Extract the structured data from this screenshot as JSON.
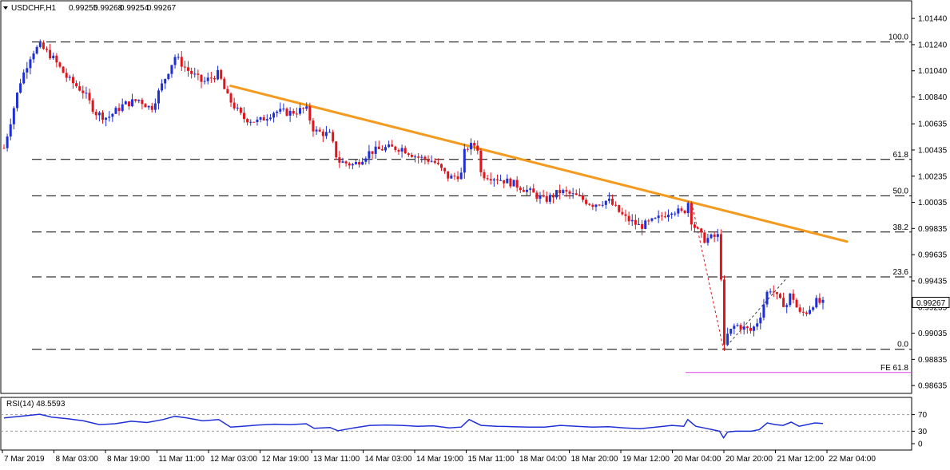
{
  "chart_data": {
    "type": "candlestick",
    "symbol_line": {
      "symbol": "USDCHF,H1",
      "open": "0.99255",
      "high": "0.99268",
      "low": "0.99254",
      "close": "0.99267"
    },
    "price_axis": {
      "range": [
        0.98575,
        1.01575
      ],
      "ticks": [
        "1.01440",
        "1.01240",
        "1.01040",
        "1.00840",
        "1.00635",
        "1.00435",
        "1.00235",
        "1.00035",
        "0.99835",
        "0.99635",
        "0.99435",
        "0.99235",
        "0.99035",
        "0.98835",
        "0.98635"
      ],
      "current_price_label": "0.99267",
      "current_price": 0.99267
    },
    "time_axis": {
      "labels": [
        "7 Mar 2019",
        "8 Mar 03:00",
        "8 Mar 19:00",
        "11 Mar 11:00",
        "12 Mar 03:00",
        "12 Mar 19:00",
        "13 Mar 11:00",
        "14 Mar 03:00",
        "14 Mar 19:00",
        "15 Mar 11:00",
        "18 Mar 04:00",
        "18 Mar 20:00",
        "19 Mar 12:00",
        "20 Mar 04:00",
        "20 Mar 20:00",
        "21 Mar 12:00",
        "22 Mar 04:00"
      ]
    },
    "fibonacci_levels": [
      {
        "label": "100.0",
        "price": 1.0126
      },
      {
        "label": "61.8",
        "price": 1.00363
      },
      {
        "label": "50.0",
        "price": 1.00085
      },
      {
        "label": "38.2",
        "price": 0.99808
      },
      {
        "label": "23.6",
        "price": 0.99465
      },
      {
        "label": "0.0",
        "price": 0.98912
      }
    ],
    "fibonacci_extension": {
      "label": "FE 61.8",
      "price": 0.98735
    },
    "trendline": {
      "start": {
        "bar": 0.285,
        "price": 1.00925
      },
      "end": {
        "bar": 1.0,
        "price": 0.99735
      }
    },
    "price_path": [
      [
        0.0,
        1.0045
      ],
      [
        0.02,
        1.0095
      ],
      [
        0.035,
        1.0118
      ],
      [
        0.045,
        1.0123
      ],
      [
        0.06,
        1.0115
      ],
      [
        0.08,
        1.0098
      ],
      [
        0.1,
        1.0088
      ],
      [
        0.115,
        1.0072
      ],
      [
        0.13,
        1.0068
      ],
      [
        0.15,
        1.0078
      ],
      [
        0.17,
        1.0082
      ],
      [
        0.185,
        1.0075
      ],
      [
        0.2,
        1.0095
      ],
      [
        0.215,
        1.0115
      ],
      [
        0.23,
        1.0105
      ],
      [
        0.25,
        1.0095
      ],
      [
        0.27,
        1.0102
      ],
      [
        0.28,
        1.0085
      ],
      [
        0.3,
        1.0068
      ],
      [
        0.32,
        1.0065
      ],
      [
        0.34,
        1.0073
      ],
      [
        0.36,
        1.0072
      ],
      [
        0.38,
        1.0075
      ],
      [
        0.39,
        1.0058
      ],
      [
        0.41,
        1.0055
      ],
      [
        0.42,
        1.0035
      ],
      [
        0.44,
        1.0032
      ],
      [
        0.46,
        1.0042
      ],
      [
        0.48,
        1.0045
      ],
      [
        0.5,
        1.0045
      ],
      [
        0.52,
        1.0038
      ],
      [
        0.54,
        1.0035
      ],
      [
        0.56,
        1.0022
      ],
      [
        0.575,
        1.0025
      ],
      [
        0.58,
        1.0045
      ],
      [
        0.595,
        1.0048
      ],
      [
        0.6,
        1.0025
      ],
      [
        0.62,
        1.0022
      ],
      [
        0.64,
        1.0018
      ],
      [
        0.66,
        1.0012
      ],
      [
        0.68,
        1.0005
      ],
      [
        0.7,
        1.0012
      ],
      [
        0.72,
        1.0008
      ],
      [
        0.74,
        1.0002
      ],
      [
        0.76,
        1.0005
      ],
      [
        0.78,
        0.9992
      ],
      [
        0.8,
        0.9985
      ],
      [
        0.82,
        0.999
      ],
      [
        0.84,
        0.9998
      ],
      [
        0.855,
        0.9995
      ],
      [
        0.86,
        1.0005
      ],
      [
        0.865,
        0.9988
      ],
      [
        0.88,
        0.9975
      ],
      [
        0.9,
        0.9978
      ],
      [
        0.905,
        0.989
      ],
      [
        0.91,
        0.9902
      ],
      [
        0.92,
        0.991
      ],
      [
        0.94,
        0.9905
      ],
      [
        0.95,
        0.9915
      ],
      [
        0.96,
        0.9935
      ],
      [
        0.965,
        0.9938
      ],
      [
        0.975,
        0.9928
      ],
      [
        0.985,
        0.9925
      ],
      [
        0.99,
        0.9935
      ],
      [
        1.0,
        0.9918
      ],
      [
        1.01,
        0.992
      ],
      [
        1.02,
        0.9928
      ],
      [
        1.03,
        0.9926
      ]
    ],
    "rsi": {
      "label": "RSI(14) 48.5593",
      "range": [
        0,
        100
      ],
      "levels": [
        {
          "label": "70",
          "value": 70
        },
        {
          "label": "30",
          "value": 30
        }
      ],
      "extra_tick": {
        "label": "0",
        "value": 0
      },
      "path": [
        [
          0.0,
          62
        ],
        [
          0.02,
          66
        ],
        [
          0.045,
          71
        ],
        [
          0.06,
          64
        ],
        [
          0.08,
          60
        ],
        [
          0.1,
          55
        ],
        [
          0.12,
          46
        ],
        [
          0.14,
          48
        ],
        [
          0.16,
          54
        ],
        [
          0.18,
          51
        ],
        [
          0.2,
          58
        ],
        [
          0.215,
          66
        ],
        [
          0.23,
          62
        ],
        [
          0.25,
          55
        ],
        [
          0.27,
          58
        ],
        [
          0.285,
          40
        ],
        [
          0.3,
          42
        ],
        [
          0.32,
          45
        ],
        [
          0.34,
          47
        ],
        [
          0.36,
          46
        ],
        [
          0.38,
          48
        ],
        [
          0.39,
          37
        ],
        [
          0.41,
          39
        ],
        [
          0.42,
          31
        ],
        [
          0.44,
          38
        ],
        [
          0.46,
          44
        ],
        [
          0.48,
          45
        ],
        [
          0.5,
          44
        ],
        [
          0.52,
          42
        ],
        [
          0.54,
          43
        ],
        [
          0.56,
          38
        ],
        [
          0.575,
          40
        ],
        [
          0.585,
          58
        ],
        [
          0.6,
          44
        ],
        [
          0.62,
          42
        ],
        [
          0.64,
          41
        ],
        [
          0.66,
          40
        ],
        [
          0.68,
          40
        ],
        [
          0.7,
          44
        ],
        [
          0.72,
          42
        ],
        [
          0.74,
          40
        ],
        [
          0.76,
          41
        ],
        [
          0.78,
          38
        ],
        [
          0.8,
          36
        ],
        [
          0.82,
          40
        ],
        [
          0.84,
          44
        ],
        [
          0.855,
          42
        ],
        [
          0.86,
          58
        ],
        [
          0.87,
          42
        ],
        [
          0.88,
          38
        ],
        [
          0.9,
          30
        ],
        [
          0.905,
          14
        ],
        [
          0.91,
          28
        ],
        [
          0.92,
          30
        ],
        [
          0.94,
          30
        ],
        [
          0.95,
          34
        ],
        [
          0.96,
          50
        ],
        [
          0.97,
          46
        ],
        [
          0.98,
          44
        ],
        [
          0.99,
          52
        ],
        [
          1.0,
          42
        ],
        [
          1.01,
          46
        ],
        [
          1.02,
          50
        ],
        [
          1.03,
          48.5593
        ]
      ]
    }
  },
  "colors": {
    "bull_candle": "#1f2fd6",
    "bear_candle": "#e0141b",
    "trendline": "#f39a1f",
    "rsi_line": "#1f2fd6",
    "fe_line": "#e040e0",
    "fib_line": "#000000",
    "grid": "#000000"
  }
}
